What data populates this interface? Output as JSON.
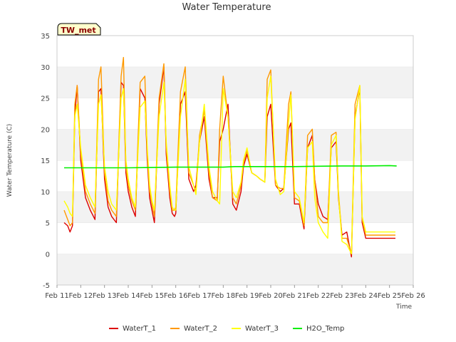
{
  "chart_data": {
    "type": "line",
    "title": "Water Temperature",
    "xlabel": "Time",
    "ylabel": "Water Temperature (C)",
    "ylim": [
      -5,
      35
    ],
    "xlim": [
      "Feb 11",
      "Feb 26"
    ],
    "yticks": [
      -5,
      0,
      5,
      10,
      15,
      20,
      25,
      30,
      35
    ],
    "xticks": [
      "Feb 11",
      "Feb 12",
      "Feb 13",
      "Feb 14",
      "Feb 15",
      "Feb 16",
      "Feb 17",
      "Feb 18",
      "Feb 19",
      "Feb 20",
      "Feb 21",
      "Feb 22",
      "Feb 23",
      "Feb 24",
      "Feb 25",
      "Feb 26"
    ],
    "grid": "horizontal bands",
    "legend_position": "bottom",
    "badge": "TW_met",
    "series": [
      {
        "name": "WaterT_1",
        "color": "#dd0000",
        "x": [
          11.3,
          11.45,
          11.55,
          11.65,
          11.75,
          11.85,
          12.0,
          12.2,
          12.4,
          12.6,
          12.75,
          12.85,
          13.0,
          13.15,
          13.3,
          13.5,
          13.7,
          13.8,
          13.9,
          14.0,
          14.15,
          14.3,
          14.5,
          14.7,
          14.8,
          14.9,
          15.0,
          15.1,
          15.3,
          15.5,
          15.6,
          15.75,
          15.85,
          15.95,
          16.0,
          16.2,
          16.4,
          16.55,
          16.75,
          16.85,
          17.0,
          17.2,
          17.4,
          17.55,
          17.75,
          17.85,
          18.0,
          18.2,
          18.4,
          18.55,
          18.75,
          18.85,
          19.0,
          19.2,
          19.4,
          19.55,
          19.75,
          19.85,
          20.0,
          20.2,
          20.4,
          20.55,
          20.75,
          20.85,
          21.0,
          21.2,
          21.4,
          21.55,
          21.75,
          21.85,
          22.0,
          22.2,
          22.4,
          22.55,
          22.75,
          22.85,
          23.0,
          23.2,
          23.4,
          23.55,
          23.75,
          23.85,
          24.0,
          24.2,
          24.4,
          24.5,
          24.75,
          24.85,
          25.0,
          25.1,
          25.25
        ],
        "y": [
          5.0,
          4.5,
          3.5,
          4.5,
          22.0,
          27.0,
          15.0,
          9.0,
          7.0,
          5.5,
          26.0,
          26.5,
          12.0,
          7.5,
          6.0,
          5.0,
          27.5,
          27.0,
          13.0,
          10.0,
          7.5,
          6.0,
          26.5,
          25.0,
          15.0,
          9.0,
          7.0,
          5.0,
          24.0,
          30.0,
          16.0,
          9.0,
          6.5,
          6.0,
          6.5,
          24.0,
          26.0,
          12.0,
          10.0,
          11.0,
          18.0,
          22.0,
          12.0,
          9.0,
          9.0,
          18.0,
          20.0,
          24.0,
          8.0,
          7.0,
          10.0,
          14.0,
          16.0,
          13.0,
          12.5,
          12.0,
          11.5,
          22.0,
          24.0,
          11.0,
          10.0,
          10.5,
          20.0,
          21.0,
          8.0,
          8.0,
          4.0,
          17.0,
          19.0,
          12.0,
          8.0,
          6.0,
          5.5,
          17.0,
          18.0,
          9.0,
          3.0,
          3.5,
          -0.5,
          22.0,
          26.5,
          5.0,
          2.5,
          2.5,
          2.5,
          2.5,
          2.5,
          2.5,
          2.5,
          2.5,
          2.5
        ]
      },
      {
        "name": "WaterT_2",
        "color": "#ff9900",
        "x": [
          11.3,
          11.45,
          11.55,
          11.65,
          11.75,
          11.85,
          12.0,
          12.2,
          12.4,
          12.6,
          12.75,
          12.85,
          13.0,
          13.15,
          13.3,
          13.5,
          13.7,
          13.8,
          13.9,
          14.0,
          14.15,
          14.3,
          14.5,
          14.7,
          14.8,
          14.9,
          15.0,
          15.1,
          15.3,
          15.5,
          15.6,
          15.75,
          15.85,
          15.95,
          16.0,
          16.2,
          16.4,
          16.55,
          16.75,
          16.85,
          17.0,
          17.2,
          17.4,
          17.55,
          17.75,
          17.85,
          18.0,
          18.2,
          18.4,
          18.55,
          18.75,
          18.85,
          19.0,
          19.2,
          19.4,
          19.55,
          19.75,
          19.85,
          20.0,
          20.2,
          20.4,
          20.55,
          20.75,
          20.85,
          21.0,
          21.2,
          21.4,
          21.55,
          21.75,
          21.85,
          22.0,
          22.2,
          22.4,
          22.55,
          22.75,
          22.85,
          23.0,
          23.2,
          23.4,
          23.55,
          23.75,
          23.85,
          24.0,
          24.2,
          24.4,
          24.5,
          24.75,
          24.85,
          25.0,
          25.1,
          25.25
        ],
        "y": [
          7.0,
          5.5,
          4.5,
          5.0,
          24.0,
          27.0,
          16.0,
          10.0,
          8.0,
          6.5,
          28.0,
          30.0,
          13.0,
          8.5,
          7.0,
          6.0,
          28.5,
          31.5,
          14.0,
          11.0,
          8.5,
          7.0,
          27.5,
          28.5,
          16.0,
          10.0,
          8.0,
          6.0,
          25.0,
          30.5,
          17.0,
          10.0,
          7.0,
          7.0,
          7.5,
          26.0,
          30.0,
          13.0,
          11.0,
          10.0,
          19.0,
          23.0,
          13.0,
          9.0,
          8.5,
          20.0,
          28.5,
          22.0,
          9.0,
          8.0,
          11.0,
          14.5,
          16.5,
          13.0,
          12.5,
          12.0,
          11.5,
          28.0,
          29.5,
          11.0,
          10.5,
          10.5,
          24.0,
          26.0,
          9.0,
          8.5,
          4.5,
          19.0,
          20.0,
          12.0,
          6.0,
          5.0,
          5.0,
          19.0,
          19.5,
          10.0,
          2.5,
          2.5,
          0.0,
          24.0,
          27.0,
          5.5,
          3.0,
          3.0,
          3.0,
          3.0,
          3.0,
          3.0,
          3.0,
          3.0,
          3.0
        ]
      },
      {
        "name": "WaterT_3",
        "color": "#ffff00",
        "x": [
          11.3,
          11.45,
          11.55,
          11.65,
          11.75,
          11.85,
          12.0,
          12.2,
          12.4,
          12.6,
          12.75,
          12.85,
          13.0,
          13.15,
          13.3,
          13.5,
          13.7,
          13.8,
          13.9,
          14.0,
          14.15,
          14.3,
          14.5,
          14.7,
          14.8,
          14.9,
          15.0,
          15.1,
          15.3,
          15.5,
          15.6,
          15.75,
          15.85,
          15.95,
          16.0,
          16.2,
          16.4,
          16.55,
          16.75,
          16.85,
          17.0,
          17.2,
          17.4,
          17.55,
          17.75,
          17.85,
          18.0,
          18.2,
          18.4,
          18.55,
          18.75,
          18.85,
          19.0,
          19.2,
          19.4,
          19.55,
          19.75,
          19.85,
          20.0,
          20.2,
          20.4,
          20.55,
          20.75,
          20.85,
          21.0,
          21.2,
          21.4,
          21.55,
          21.75,
          21.85,
          22.0,
          22.2,
          22.4,
          22.55,
          22.75,
          22.85,
          23.0,
          23.2,
          23.4,
          23.55,
          23.75,
          23.85,
          24.0,
          24.2,
          24.4,
          24.5,
          24.75,
          24.85,
          25.0,
          25.1,
          25.25
        ],
        "y": [
          8.5,
          7.5,
          6.5,
          6.0,
          22.0,
          24.0,
          17.0,
          11.0,
          9.0,
          7.5,
          24.0,
          25.5,
          14.0,
          10.0,
          8.0,
          7.0,
          25.0,
          26.5,
          15.0,
          12.0,
          9.0,
          7.5,
          23.5,
          24.5,
          17.0,
          11.0,
          8.5,
          7.0,
          22.0,
          27.5,
          18.0,
          11.0,
          7.5,
          7.0,
          7.0,
          22.0,
          28.0,
          14.0,
          11.0,
          9.5,
          18.0,
          24.0,
          14.0,
          10.0,
          8.5,
          8.0,
          26.5,
          22.0,
          10.0,
          9.0,
          11.5,
          15.0,
          17.0,
          13.0,
          12.5,
          12.0,
          11.5,
          25.0,
          28.5,
          12.0,
          9.5,
          10.0,
          21.0,
          25.5,
          10.0,
          9.0,
          5.0,
          17.0,
          18.0,
          9.0,
          5.0,
          3.5,
          2.5,
          17.5,
          19.0,
          9.5,
          2.0,
          1.5,
          0.0,
          21.5,
          27.0,
          6.0,
          3.5,
          3.5,
          3.5,
          3.5,
          3.5,
          3.5,
          3.5,
          3.5,
          3.5
        ]
      },
      {
        "name": "H2O_Temp",
        "color": "#00ee00",
        "x": [
          11.3,
          12.0,
          13.0,
          14.0,
          15.0,
          16.0,
          17.0,
          18.0,
          18.5,
          19.0,
          20.0,
          21.0,
          22.0,
          23.0,
          24.0,
          25.0,
          25.3
        ],
        "y": [
          13.8,
          13.8,
          13.8,
          13.8,
          13.85,
          13.9,
          13.9,
          13.9,
          14.0,
          14.0,
          14.0,
          14.0,
          14.05,
          14.1,
          14.1,
          14.15,
          14.1
        ]
      }
    ]
  }
}
